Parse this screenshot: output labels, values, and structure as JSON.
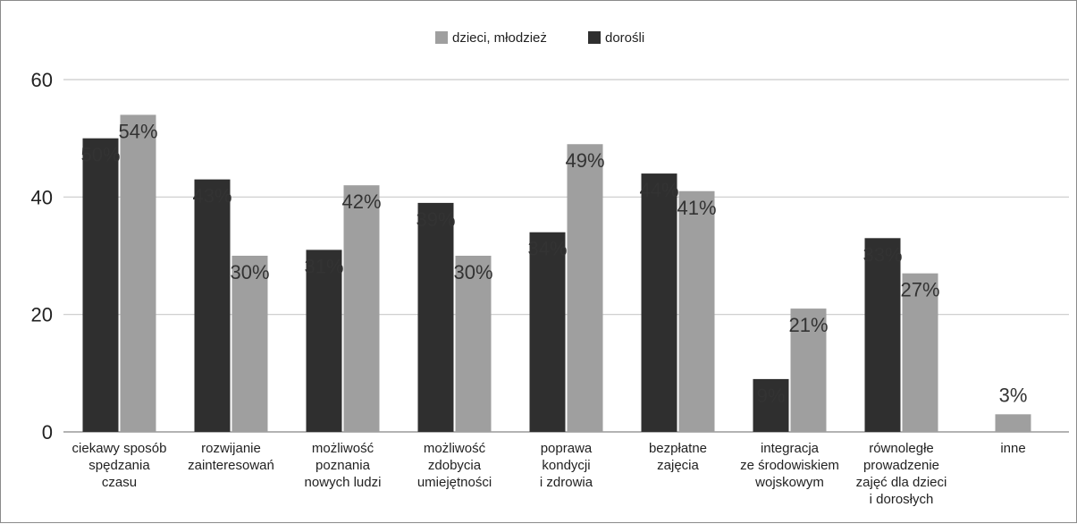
{
  "chart_data": {
    "type": "bar",
    "categories": [
      [
        "ciekawy sposób",
        "spędzania",
        "czasu"
      ],
      [
        "rozwijanie",
        "zainteresowań"
      ],
      [
        "możliwość",
        "poznania",
        "nowych ludzi"
      ],
      [
        "możliwość",
        "zdobycia",
        "umiejętności"
      ],
      [
        "poprawa",
        "kondycji",
        "i zdrowia"
      ],
      [
        "bezpłatne",
        "zajęcia"
      ],
      [
        "integracja",
        "ze środowiskiem",
        "wojskowym"
      ],
      [
        "równoległe",
        "prowadzenie",
        "zajęć dla dzieci",
        "i dorosłych"
      ],
      [
        "inne"
      ]
    ],
    "series": [
      {
        "name": "dorośli",
        "color": "#2f2f2f",
        "values": [
          50,
          43,
          31,
          39,
          34,
          44,
          9,
          33,
          null
        ],
        "labels": [
          "50%",
          "43%",
          "31%",
          "39%",
          "34%",
          "44%",
          "9%",
          "33%",
          ""
        ]
      },
      {
        "name": "dzieci, młodzież",
        "color": "#9f9f9f",
        "values": [
          54,
          30,
          42,
          30,
          49,
          41,
          21,
          27,
          3
        ],
        "labels": [
          "54%",
          "30%",
          "42%",
          "30%",
          "49%",
          "41%",
          "21%",
          "27%",
          "3%"
        ]
      }
    ],
    "legend_order": [
      "dzieci, młodzież",
      "dorośli"
    ],
    "legend_position": "top-center",
    "ylim": [
      0,
      60
    ],
    "yticks": [
      0,
      20,
      40,
      60
    ],
    "grid": true
  }
}
